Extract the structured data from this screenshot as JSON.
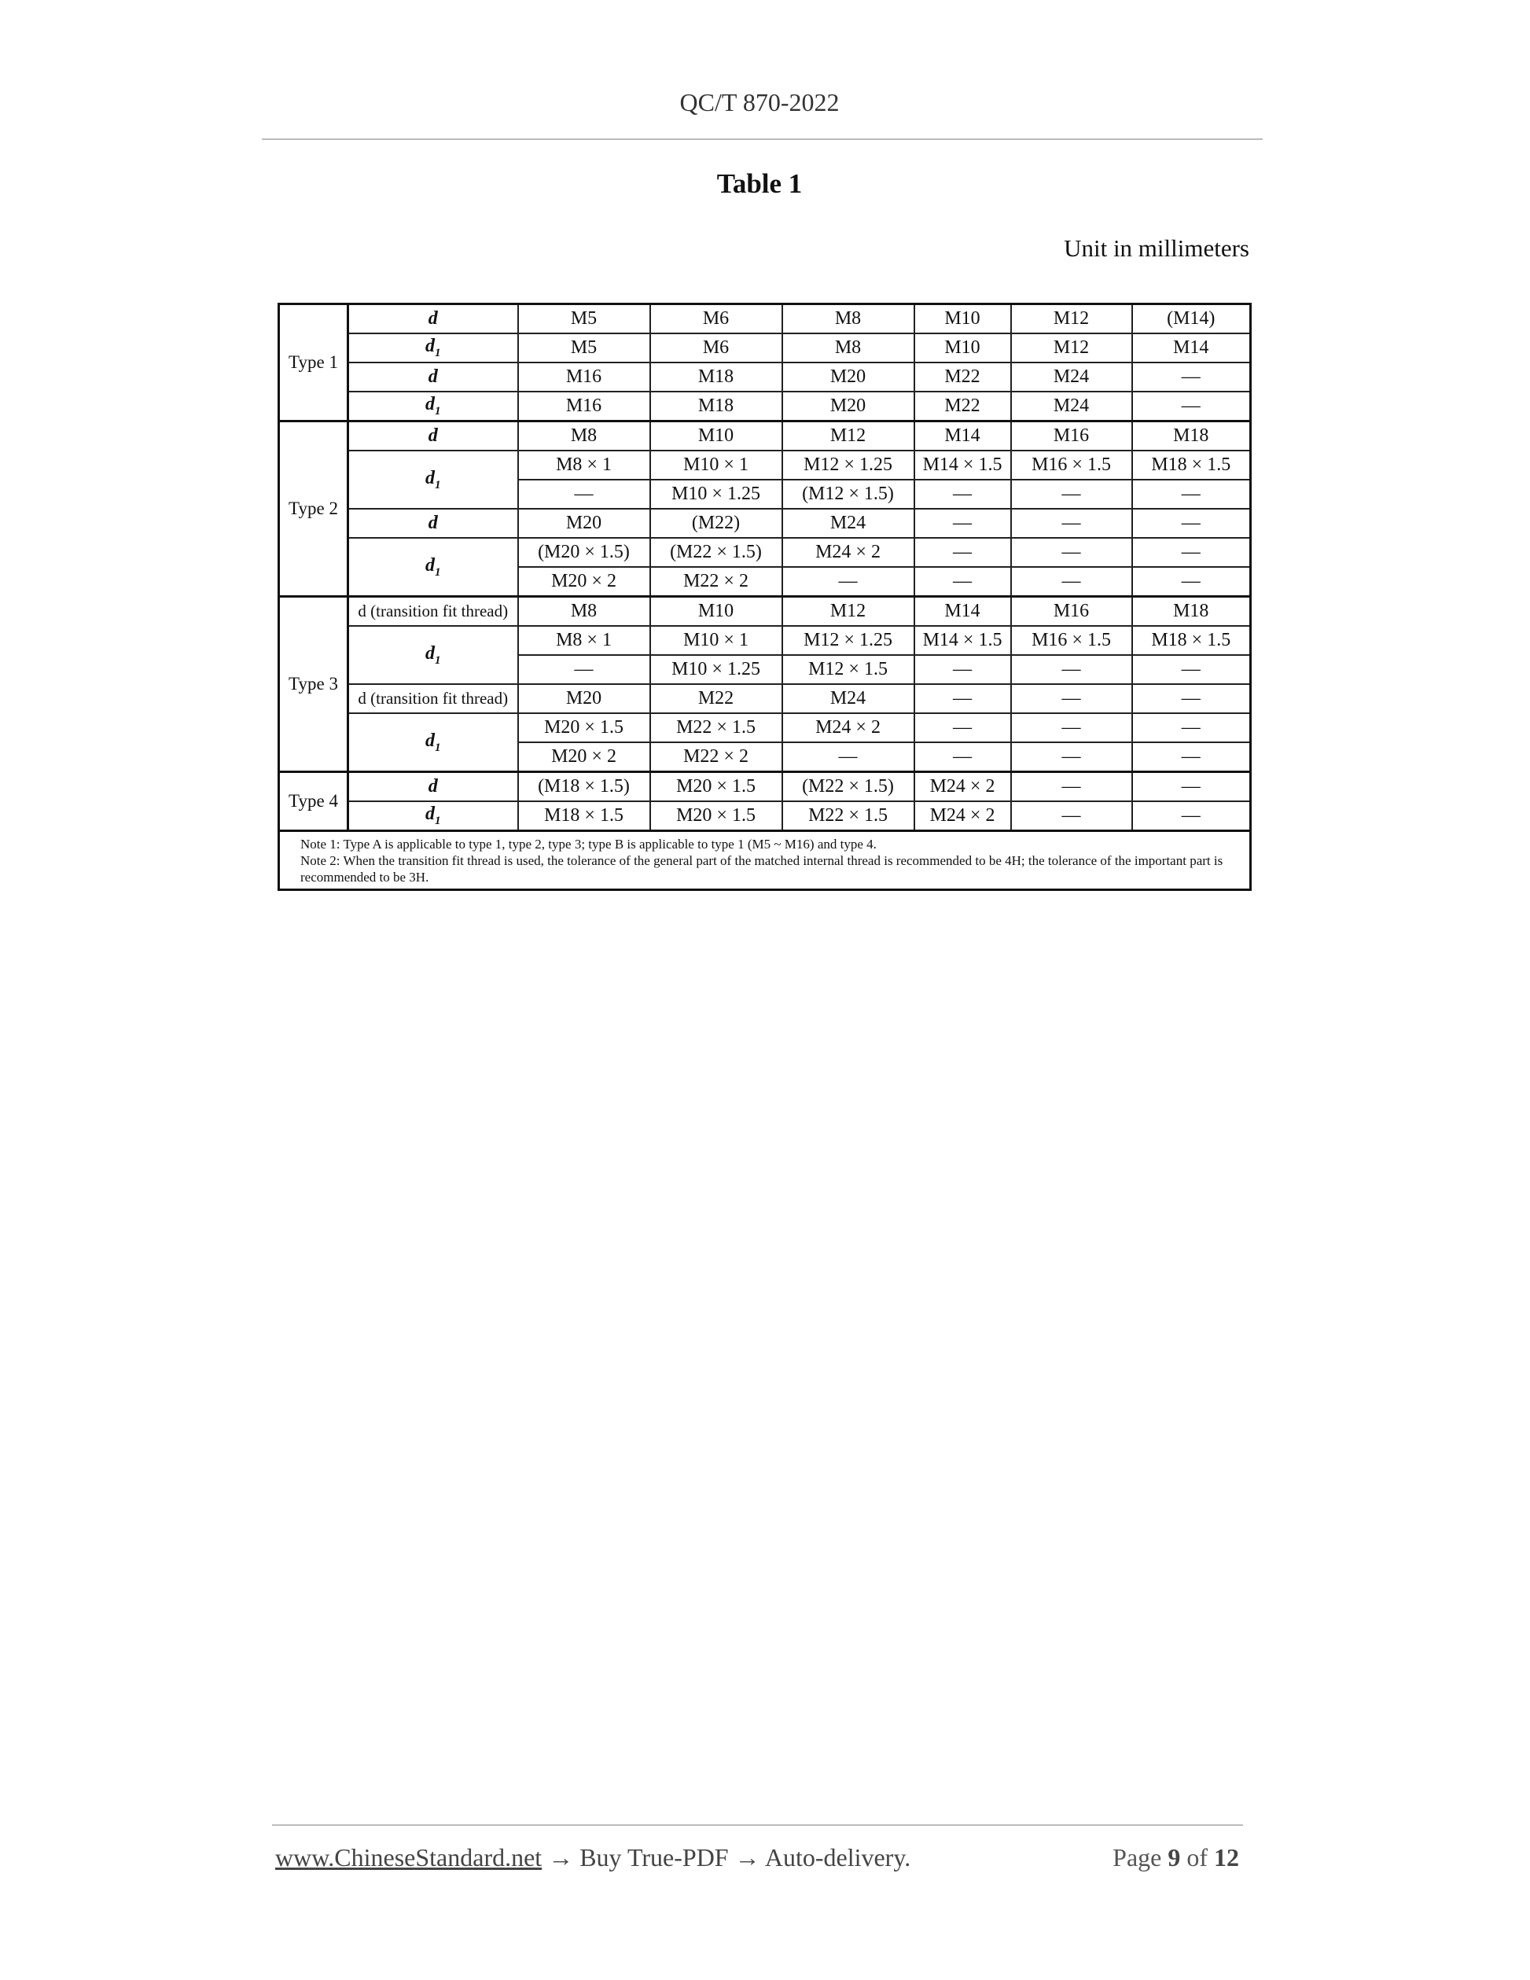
{
  "header": {
    "doc_code": "QC/T 870-2022"
  },
  "title": "Table 1",
  "unit": "Unit in millimeters",
  "table": {
    "groups": [
      {
        "type": "Type 1",
        "rows": [
          {
            "label": "d",
            "span": 1,
            "cells": [
              "M5",
              "M6",
              "M8",
              "M10",
              "M12",
              "(M14)"
            ]
          },
          {
            "label": "d1",
            "span": 1,
            "cells": [
              "M5",
              "M6",
              "M8",
              "M10",
              "M12",
              "M14"
            ]
          },
          {
            "label": "d",
            "span": 1,
            "cells": [
              "M16",
              "M18",
              "M20",
              "M22",
              "M24",
              "—"
            ]
          },
          {
            "label": "d1",
            "span": 1,
            "cells": [
              "M16",
              "M18",
              "M20",
              "M22",
              "M24",
              "—"
            ]
          }
        ]
      },
      {
        "type": "Type 2",
        "rows": [
          {
            "label": "d",
            "span": 1,
            "cells": [
              "M8",
              "M10",
              "M12",
              "M14",
              "M16",
              "M18"
            ]
          },
          {
            "label": "d1",
            "span": 2,
            "cells": [
              "M8 × 1",
              "M10 × 1",
              "M12 × 1.25",
              "M14 × 1.5",
              "M16 × 1.5",
              "M18 × 1.5"
            ]
          },
          {
            "label": null,
            "cells": [
              "—",
              "M10 × 1.25",
              "(M12 × 1.5)",
              "—",
              "—",
              "—"
            ]
          },
          {
            "label": "d",
            "span": 1,
            "cells": [
              "M20",
              "(M22)",
              "M24",
              "—",
              "—",
              "—"
            ]
          },
          {
            "label": "d1",
            "span": 2,
            "cells": [
              "(M20 × 1.5)",
              "(M22 × 1.5)",
              "M24 × 2",
              "—",
              "—",
              "—"
            ]
          },
          {
            "label": null,
            "cells": [
              "M20 × 2",
              "M22 × 2",
              "—",
              "—",
              "—",
              "—"
            ]
          }
        ]
      },
      {
        "type": "Type 3",
        "rows": [
          {
            "label": "d (transition fit thread)",
            "span": 1,
            "cells": [
              "M8",
              "M10",
              "M12",
              "M14",
              "M16",
              "M18"
            ]
          },
          {
            "label": "d1",
            "span": 2,
            "cells": [
              "M8 × 1",
              "M10 × 1",
              "M12 × 1.25",
              "M14 × 1.5",
              "M16 × 1.5",
              "M18 × 1.5"
            ]
          },
          {
            "label": null,
            "cells": [
              "—",
              "M10 × 1.25",
              "M12 × 1.5",
              "—",
              "—",
              "—"
            ]
          },
          {
            "label": "d (transition fit thread)",
            "span": 1,
            "cells": [
              "M20",
              "M22",
              "M24",
              "—",
              "—",
              "—"
            ]
          },
          {
            "label": "d1",
            "span": 2,
            "cells": [
              "M20 × 1.5",
              "M22 × 1.5",
              "M24 × 2",
              "—",
              "—",
              "—"
            ]
          },
          {
            "label": null,
            "cells": [
              "M20 × 2",
              "M22 × 2",
              "—",
              "—",
              "—",
              "—"
            ]
          }
        ]
      },
      {
        "type": "Type 4",
        "rows": [
          {
            "label": "d",
            "span": 1,
            "cells": [
              "(M18 × 1.5)",
              "M20 × 1.5",
              "(M22 × 1.5)",
              "M24 × 2",
              "—",
              "—"
            ]
          },
          {
            "label": "d1",
            "span": 1,
            "cells": [
              "M18 × 1.5",
              "M20 × 1.5",
              "M22 × 1.5",
              "M24 × 2",
              "—",
              "—"
            ]
          }
        ]
      }
    ],
    "notes": [
      "Note 1: Type A is applicable to type 1, type 2, type 3; type B is applicable to type 1 (M5 ~ M16) and type 4.",
      "Note 2: When the transition fit thread is used, the tolerance of the general part of the matched internal thread is recommended to be 4H; the tolerance of the important part is recommended to be 3H."
    ]
  },
  "footer": {
    "link": "www.ChineseStandard.net",
    "arrow": "→",
    "buy": "Buy True-PDF",
    "delivery": "Auto-delivery.",
    "page_word": "Page",
    "page_num": "9",
    "of_word": "of",
    "page_total": "12"
  }
}
